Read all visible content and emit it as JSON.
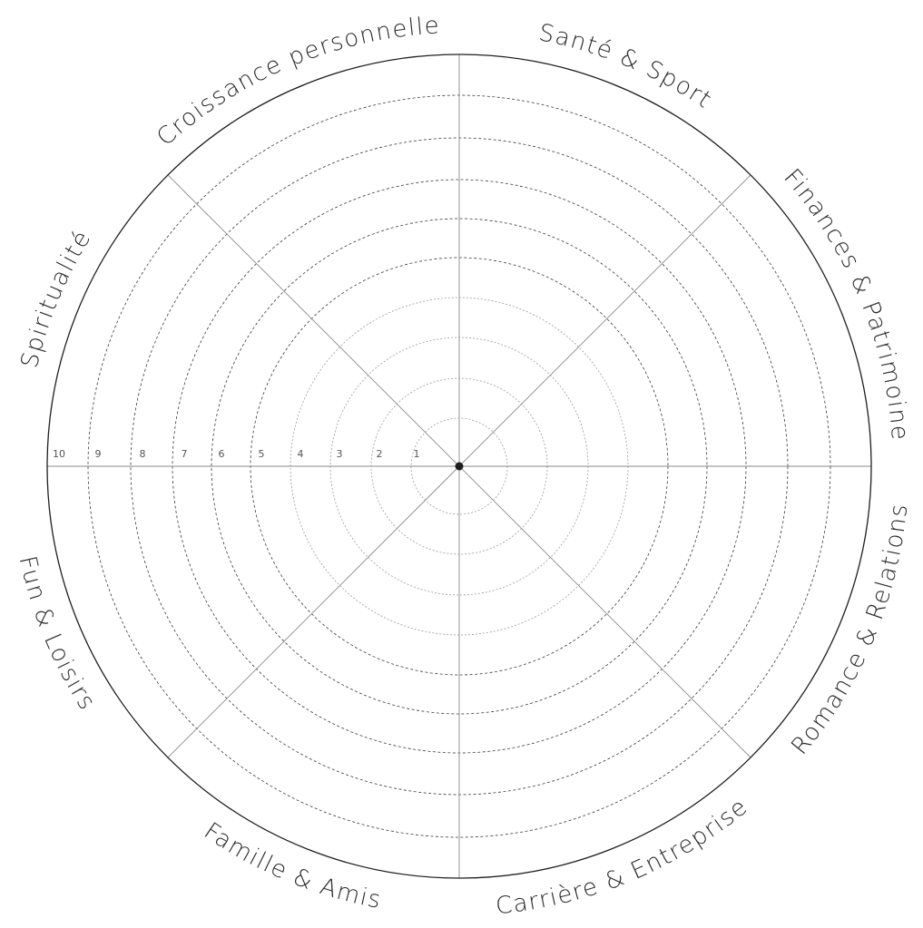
{
  "wheel": {
    "categories": [
      "Santé & Sport",
      "Finances & Patrimoine",
      "Romance & Relations",
      "Carrière & Entreprise",
      "Famille & Amis",
      "Fun & Loisirs",
      "Spiritualité",
      "Croissance personnelle"
    ],
    "scale": [
      "1",
      "2",
      "3",
      "4",
      "5",
      "6",
      "7",
      "8",
      "9",
      "10"
    ],
    "colors": {
      "outline": "#1e1e1e",
      "spokes": "#8a8a8a",
      "rings": "#3a3a3a",
      "text": "#2a2a2a"
    }
  }
}
